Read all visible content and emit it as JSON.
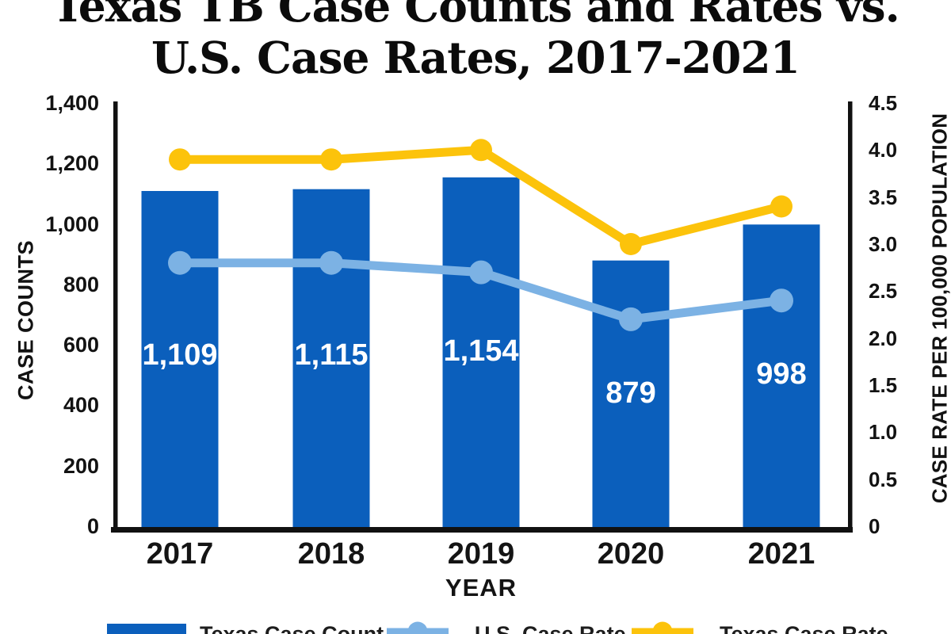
{
  "title": {
    "line1": "Texas TB Case Counts and Rates vs.",
    "line2": "U.S. Case Rates, 2017-2021"
  },
  "chart_data": {
    "type": "combo-bar-line",
    "categories": [
      "2017",
      "2018",
      "2019",
      "2020",
      "2021"
    ],
    "series": [
      {
        "name": "Texas Case Count",
        "type": "bar",
        "axis": "left",
        "values": [
          1109,
          1115,
          1154,
          879,
          998
        ],
        "value_labels": [
          "1,109",
          "1,115",
          "1,154",
          "879",
          "998"
        ],
        "color": "#0B5FBC",
        "label_color": "#FFFFFF"
      },
      {
        "name": "U.S. Case Rate",
        "type": "line",
        "axis": "right",
        "values": [
          2.8,
          2.8,
          2.7,
          2.2,
          2.4
        ],
        "color": "#7CB2E4"
      },
      {
        "name": "Texas Case Rate",
        "type": "line",
        "axis": "right",
        "values": [
          3.9,
          3.9,
          4.0,
          3.0,
          3.4
        ],
        "color": "#FCC30B"
      }
    ],
    "left_axis": {
      "title": "CASE COUNTS",
      "min": 0,
      "max": 1400,
      "tick_labels": [
        "1,400",
        "1,200",
        "1,000",
        "800",
        "600",
        "400",
        "200",
        "0"
      ]
    },
    "right_axis": {
      "title": "CASE RATE PER 100,000 POPULATION",
      "min": 0,
      "max": 4.5,
      "tick_labels": [
        "4.5",
        "4.0",
        "3.5",
        "3.0",
        "2.5",
        "2.0",
        "1.5",
        "1.0",
        "0.5",
        "0"
      ]
    },
    "x_axis": {
      "title": "YEAR"
    },
    "legend": [
      {
        "label": "Texas Case Count",
        "swatch": "bar",
        "color": "#0B5FBC"
      },
      {
        "label": "U.S. Case Rate",
        "swatch": "line",
        "color": "#7CB2E4"
      },
      {
        "label": "Texas Case Rate",
        "swatch": "line",
        "color": "#FCC30B"
      }
    ],
    "axis_color": "#111111",
    "grid": false,
    "legend_position": "bottom"
  }
}
